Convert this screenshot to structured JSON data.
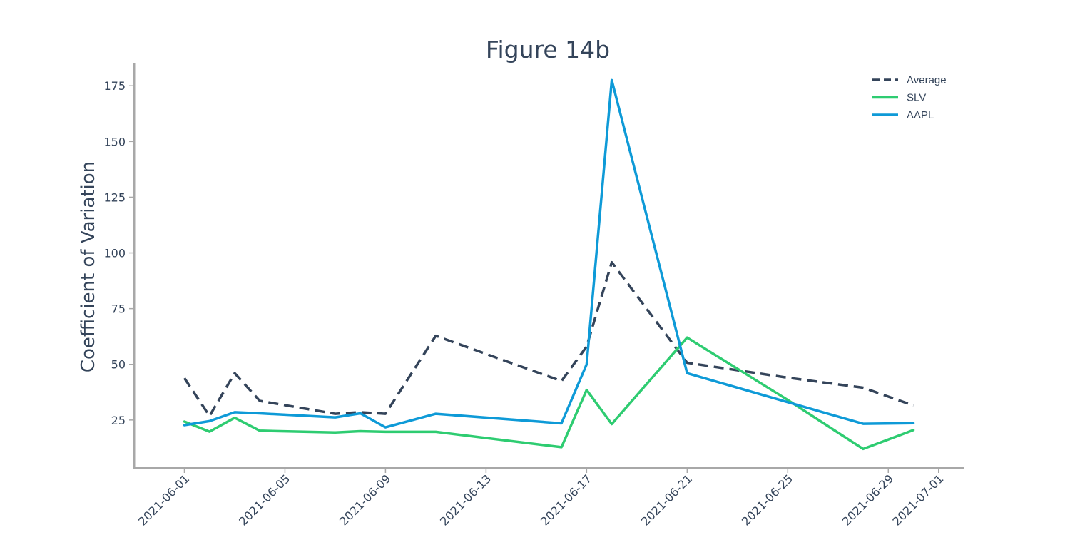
{
  "chart_data": {
    "type": "line",
    "title": "Figure 14b",
    "xlabel": "",
    "ylabel": "Coefficient of Variation",
    "xlim": [
      "2021-05-30",
      "2021-07-02"
    ],
    "ylim": [
      3.5,
      185
    ],
    "x_ticks": [
      "2021-06-01",
      "2021-06-05",
      "2021-06-09",
      "2021-06-13",
      "2021-06-17",
      "2021-06-21",
      "2021-06-25",
      "2021-06-29",
      "2021-07-01"
    ],
    "y_ticks": [
      25,
      50,
      75,
      100,
      125,
      150,
      175
    ],
    "grid": false,
    "legend_position": "top-right",
    "series": [
      {
        "name": "Average",
        "color": "#34445a",
        "dash": true,
        "points": [
          {
            "x": "2021-06-01",
            "y": 43.8
          },
          {
            "x": "2021-06-02",
            "y": 26.8
          },
          {
            "x": "2021-06-03",
            "y": 46.0
          },
          {
            "x": "2021-06-04",
            "y": 33.6
          },
          {
            "x": "2021-06-07",
            "y": 27.8
          },
          {
            "x": "2021-06-08",
            "y": 28.5
          },
          {
            "x": "2021-06-09",
            "y": 27.8
          },
          {
            "x": "2021-06-11",
            "y": 62.8
          },
          {
            "x": "2021-06-16",
            "y": 42.5
          },
          {
            "x": "2021-06-17",
            "y": 58.0
          },
          {
            "x": "2021-06-18",
            "y": 95.8
          },
          {
            "x": "2021-06-21",
            "y": 50.7
          },
          {
            "x": "2021-06-25",
            "y": 44.0
          },
          {
            "x": "2021-06-28",
            "y": 39.5
          },
          {
            "x": "2021-06-30",
            "y": 31.5
          }
        ]
      },
      {
        "name": "SLV",
        "color": "#2ecc71",
        "dash": false,
        "points": [
          {
            "x": "2021-06-01",
            "y": 24.3
          },
          {
            "x": "2021-06-02",
            "y": 19.8
          },
          {
            "x": "2021-06-03",
            "y": 26.0
          },
          {
            "x": "2021-06-04",
            "y": 20.2
          },
          {
            "x": "2021-06-07",
            "y": 19.4
          },
          {
            "x": "2021-06-08",
            "y": 20.0
          },
          {
            "x": "2021-06-09",
            "y": 19.7
          },
          {
            "x": "2021-06-11",
            "y": 19.7
          },
          {
            "x": "2021-06-16",
            "y": 12.8
          },
          {
            "x": "2021-06-17",
            "y": 38.5
          },
          {
            "x": "2021-06-18",
            "y": 23.2
          },
          {
            "x": "2021-06-21",
            "y": 62.0
          },
          {
            "x": "2021-06-25",
            "y": 34.0
          },
          {
            "x": "2021-06-28",
            "y": 12.0
          },
          {
            "x": "2021-06-30",
            "y": 20.5
          }
        ]
      },
      {
        "name": "AAPL",
        "color": "#0e9ad7",
        "dash": false,
        "points": [
          {
            "x": "2021-06-01",
            "y": 22.7
          },
          {
            "x": "2021-06-02",
            "y": 24.5
          },
          {
            "x": "2021-06-03",
            "y": 28.5
          },
          {
            "x": "2021-06-04",
            "y": 28.0
          },
          {
            "x": "2021-06-07",
            "y": 26.2
          },
          {
            "x": "2021-06-08",
            "y": 28.0
          },
          {
            "x": "2021-06-09",
            "y": 21.7
          },
          {
            "x": "2021-06-11",
            "y": 27.8
          },
          {
            "x": "2021-06-16",
            "y": 23.5
          },
          {
            "x": "2021-06-17",
            "y": 50.0
          },
          {
            "x": "2021-06-18",
            "y": 177.5
          },
          {
            "x": "2021-06-21",
            "y": 46.0
          },
          {
            "x": "2021-06-25",
            "y": 33.0
          },
          {
            "x": "2021-06-28",
            "y": 23.3
          },
          {
            "x": "2021-06-30",
            "y": 23.6
          }
        ]
      }
    ]
  }
}
